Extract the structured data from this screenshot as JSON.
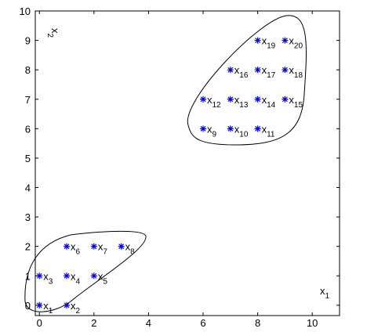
{
  "chart_data": {
    "type": "scatter",
    "x": [
      0,
      1,
      0,
      1,
      2,
      1,
      2,
      3,
      6,
      7,
      8,
      6,
      7,
      8,
      9,
      7,
      8,
      9,
      8,
      9
    ],
    "values": [
      0,
      0,
      1,
      1,
      1,
      2,
      2,
      2,
      6,
      6,
      6,
      7,
      7,
      7,
      7,
      8,
      8,
      8,
      9,
      9
    ],
    "point_letter": "x",
    "point_labels": [
      "1",
      "2",
      "3",
      "4",
      "5",
      "6",
      "7",
      "8",
      "9",
      "10",
      "11",
      "12",
      "13",
      "14",
      "15",
      "16",
      "17",
      "18",
      "19",
      "20"
    ],
    "color": "#0000ff",
    "x_label": {
      "text": "x",
      "sub": "1"
    },
    "y_label": {
      "text": "x",
      "sub": "2"
    },
    "xlim": [
      -0.15,
      11
    ],
    "ylim": [
      -0.35,
      10
    ],
    "xticks": [
      0,
      2,
      4,
      6,
      8,
      10
    ],
    "yticks": [
      0,
      1,
      2,
      3,
      4,
      5,
      6,
      7,
      8,
      9,
      10
    ]
  }
}
